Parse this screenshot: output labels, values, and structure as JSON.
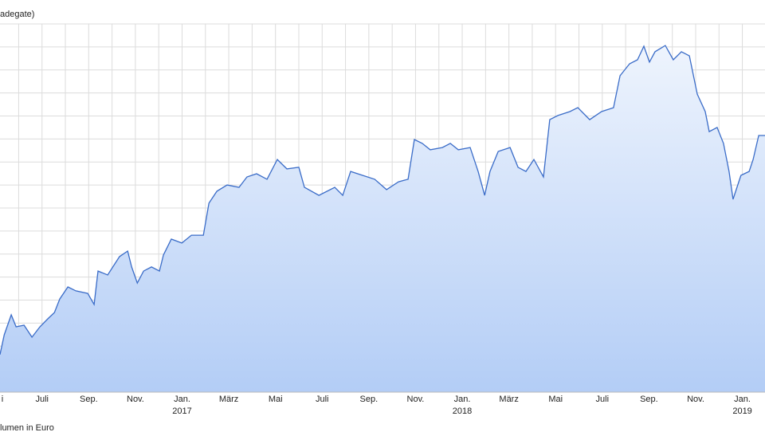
{
  "chart_data": {
    "type": "area",
    "title": "adegate)",
    "footer": "lumen in Euro",
    "color": "#3a6cc8",
    "grid": true,
    "xlim": [
      0.2,
      32.97
    ],
    "ylim": [
      0,
      16
    ],
    "yticks": [
      0,
      1,
      2,
      3,
      4,
      5,
      6,
      7,
      8,
      9,
      10,
      11,
      12,
      13,
      14,
      15,
      16
    ],
    "xticks": [
      {
        "value": 0,
        "label": "i"
      },
      {
        "value": 2,
        "label": "Juli"
      },
      {
        "value": 4,
        "label": "Sep."
      },
      {
        "value": 6,
        "label": "Nov."
      },
      {
        "value": 8,
        "label": "Jan."
      },
      {
        "value": 10,
        "label": "März"
      },
      {
        "value": 12,
        "label": "Mai"
      },
      {
        "value": 14,
        "label": "Juli"
      },
      {
        "value": 16,
        "label": "Sep."
      },
      {
        "value": 18,
        "label": "Nov."
      },
      {
        "value": 20,
        "label": "Jan."
      },
      {
        "value": 22,
        "label": "März"
      },
      {
        "value": 24,
        "label": "Mai"
      },
      {
        "value": 26,
        "label": "Juli"
      },
      {
        "value": 28,
        "label": "Sep."
      },
      {
        "value": 30,
        "label": "Nov."
      },
      {
        "value": 32,
        "label": "Jan."
      }
    ],
    "year_ticks": [
      {
        "value": 8,
        "label": "2017"
      },
      {
        "value": 20,
        "label": "2018"
      },
      {
        "value": 32,
        "label": "2019"
      }
    ],
    "x": [
      0.2,
      0.38,
      0.68,
      0.89,
      1.23,
      1.57,
      1.91,
      2.25,
      2.53,
      2.76,
      3.11,
      3.45,
      3.96,
      4.23,
      4.4,
      4.81,
      5.32,
      5.67,
      5.84,
      6.08,
      6.35,
      6.69,
      7.03,
      7.2,
      7.54,
      7.99,
      8.4,
      8.91,
      9.15,
      9.49,
      9.93,
      10.44,
      10.78,
      11.19,
      11.64,
      12.08,
      12.49,
      13.0,
      13.24,
      13.86,
      14.54,
      14.88,
      15.22,
      15.73,
      16.25,
      16.76,
      17.27,
      17.68,
      17.95,
      18.29,
      18.63,
      19.15,
      19.49,
      19.83,
      20.34,
      20.68,
      20.96,
      21.19,
      21.54,
      22.05,
      22.39,
      22.73,
      23.07,
      23.48,
      23.75,
      24.1,
      24.61,
      24.95,
      25.46,
      25.97,
      26.48,
      26.76,
      27.17,
      27.51,
      27.78,
      28.02,
      28.26,
      28.7,
      29.04,
      29.39,
      29.73,
      30.07,
      30.41,
      30.58,
      30.92,
      31.19,
      31.43,
      31.6,
      31.94,
      32.29,
      32.46,
      32.7,
      32.97
    ],
    "values": [
      1.63,
      2.49,
      3.36,
      2.84,
      2.91,
      2.39,
      2.84,
      3.19,
      3.46,
      4.05,
      4.57,
      4.4,
      4.29,
      3.81,
      5.26,
      5.09,
      5.89,
      6.13,
      5.44,
      4.74,
      5.26,
      5.44,
      5.26,
      5.96,
      6.65,
      6.48,
      6.82,
      6.82,
      8.21,
      8.73,
      9.0,
      8.9,
      9.35,
      9.49,
      9.25,
      10.11,
      9.7,
      9.77,
      8.9,
      8.55,
      8.9,
      8.55,
      9.59,
      9.42,
      9.25,
      8.8,
      9.14,
      9.25,
      10.98,
      10.81,
      10.53,
      10.63,
      10.81,
      10.53,
      10.63,
      9.59,
      8.55,
      9.59,
      10.46,
      10.63,
      9.77,
      9.59,
      10.11,
      9.35,
      11.84,
      12.02,
      12.19,
      12.36,
      11.84,
      12.19,
      12.36,
      13.75,
      14.27,
      14.44,
      15.03,
      14.34,
      14.79,
      15.06,
      14.44,
      14.79,
      14.61,
      12.95,
      12.19,
      11.32,
      11.5,
      10.81,
      9.59,
      8.38,
      9.42,
      9.59,
      10.11,
      11.15,
      11.15
    ]
  }
}
